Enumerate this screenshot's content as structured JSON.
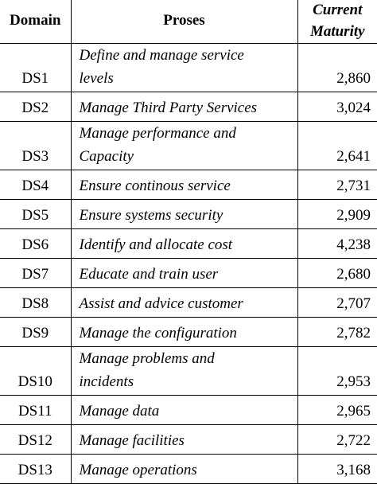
{
  "header": {
    "domain": "Domain",
    "proses": "Proses",
    "maturity_line1": "Current",
    "maturity_line2": "Maturity"
  },
  "rows": [
    {
      "domain": "DS1",
      "proses_line1": "Define and manage service",
      "proses_line2": "levels",
      "maturity": "2,860"
    },
    {
      "domain": "DS2",
      "proses_line1": "Manage Third Party Services",
      "maturity": "3,024"
    },
    {
      "domain": "DS3",
      "proses_line1": "Manage performance and",
      "proses_line2": "Capacity",
      "maturity": "2,641"
    },
    {
      "domain": "DS4",
      "proses_line1": "Ensure continous service",
      "maturity": "2,731"
    },
    {
      "domain": "DS5",
      "proses_line1": "Ensure systems security",
      "maturity": "2,909"
    },
    {
      "domain": "DS6",
      "proses_line1": "Identify and allocate cost",
      "maturity": "4,238"
    },
    {
      "domain": "DS7",
      "proses_line1": "Educate and train user",
      "maturity": "2,680"
    },
    {
      "domain": "DS8",
      "proses_line1": "Assist and advice customer",
      "maturity": "2,707"
    },
    {
      "domain": "DS9",
      "proses_line1": "Manage the configuration",
      "maturity": "2,782"
    },
    {
      "domain": "DS10",
      "proses_line1": "Manage problems and",
      "proses_line2": "incidents",
      "maturity": "2,953"
    },
    {
      "domain": "DS11",
      "proses_line1": "Manage data",
      "maturity": "2,965"
    },
    {
      "domain": "DS12",
      "proses_line1": "Manage facilities",
      "maturity": "2,722"
    },
    {
      "domain": "DS13",
      "proses_line1": "Manage operations",
      "maturity": "3,168"
    }
  ]
}
